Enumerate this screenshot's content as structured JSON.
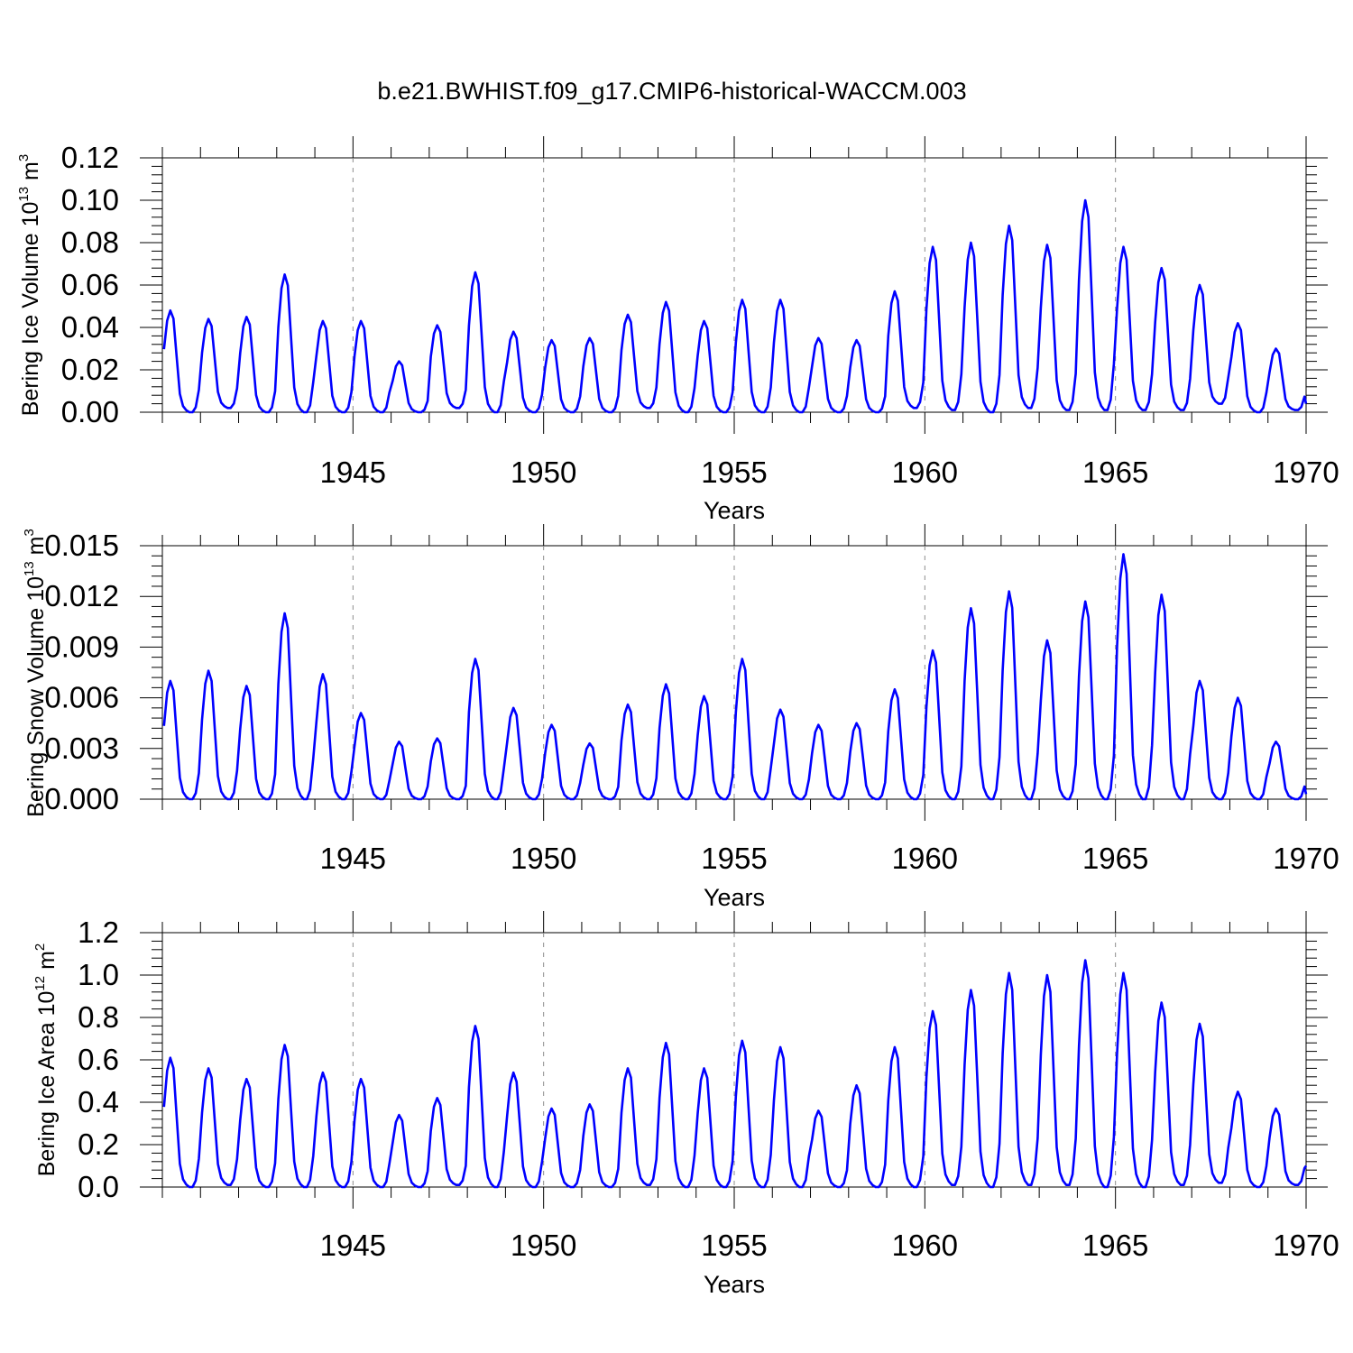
{
  "figure": {
    "title": "b.e21.BWHIST.f09_g17.CMIP6-historical-WACCM.003",
    "line_color": "#0000ff",
    "axis_color": "#000000",
    "grid_color": "#8c8c8c"
  },
  "chart_data": [
    {
      "type": "line",
      "ylabel_text": "Bering Ice Volume 10",
      "ylabel_exp": "13",
      "ylabel_unit": " m",
      "ylabel_unit_exp": "3",
      "xlabel": "Years",
      "xlim": [
        1940.0,
        1970.0
      ],
      "ylim": [
        0.0,
        0.12
      ],
      "y_ticks": [
        "0.00",
        "0.02",
        "0.04",
        "0.06",
        "0.08",
        "0.10",
        "0.12"
      ],
      "y_tick_values": [
        0.0,
        0.02,
        0.04,
        0.06,
        0.08,
        0.1,
        0.12
      ],
      "x_ticks": [
        "1945",
        "1950",
        "1955",
        "1960",
        "1965",
        "1970"
      ],
      "x_tick_values": [
        1945,
        1950,
        1955,
        1960,
        1965,
        1970
      ],
      "grid_x": [
        1945,
        1950,
        1955,
        1960,
        1965
      ],
      "annual_max": [
        0.048,
        0.044,
        0.045,
        0.065,
        0.043,
        0.043,
        0.024,
        0.041,
        0.066,
        0.038,
        0.034,
        0.035,
        0.046,
        0.052,
        0.043,
        0.053,
        0.053,
        0.035,
        0.034,
        0.057,
        0.078,
        0.08,
        0.088,
        0.079,
        0.1,
        0.078,
        0.068,
        0.06,
        0.042,
        0.03
      ],
      "annual_min": [
        0.0,
        0.002,
        0.0,
        0.0,
        0.0,
        0.0,
        0.0,
        0.002,
        0.0,
        0.0,
        0.0,
        0.0,
        0.002,
        0.0,
        0.0,
        0.0,
        0.0,
        0.0,
        0.0,
        0.002,
        0.001,
        0.0,
        0.002,
        0.001,
        0.001,
        0.001,
        0.001,
        0.004,
        0.0,
        0.001
      ],
      "end_value": 0.004
    },
    {
      "type": "line",
      "ylabel_text": "Bering Snow Volume 10",
      "ylabel_exp": "13",
      "ylabel_unit": " m",
      "ylabel_unit_exp": "3",
      "xlabel": "Years",
      "xlim": [
        1940.0,
        1970.0
      ],
      "ylim": [
        0.0,
        0.015
      ],
      "y_ticks": [
        "0.000",
        "0.003",
        "0.006",
        "0.009",
        "0.012",
        "0.015"
      ],
      "y_tick_values": [
        0.0,
        0.003,
        0.006,
        0.009,
        0.012,
        0.015
      ],
      "x_ticks": [
        "1945",
        "1950",
        "1955",
        "1960",
        "1965",
        "1970"
      ],
      "x_tick_values": [
        1945,
        1950,
        1955,
        1960,
        1965,
        1970
      ],
      "grid_x": [
        1945,
        1950,
        1955,
        1960,
        1965
      ],
      "annual_max": [
        0.007,
        0.0076,
        0.0067,
        0.011,
        0.0074,
        0.0051,
        0.0034,
        0.0036,
        0.0083,
        0.0054,
        0.0044,
        0.0033,
        0.0056,
        0.0068,
        0.0061,
        0.0083,
        0.0053,
        0.0044,
        0.0045,
        0.0065,
        0.0088,
        0.0113,
        0.0123,
        0.0094,
        0.0117,
        0.0145,
        0.0121,
        0.007,
        0.006,
        0.0034
      ],
      "annual_min": [
        0.0,
        0.0,
        0.0,
        0.0,
        0.0,
        0.0,
        0.0,
        0.0,
        0.0,
        0.0,
        0.0,
        0.0,
        0.0,
        0.0,
        0.0,
        0.0,
        0.0,
        0.0,
        0.0,
        0.0,
        0.0,
        0.0,
        0.0,
        0.0,
        0.0,
        0.0,
        0.0,
        0.0,
        0.0,
        0.0
      ],
      "end_value": 0.0003
    },
    {
      "type": "line",
      "ylabel_text": "Bering Ice Area 10",
      "ylabel_exp": "12",
      "ylabel_unit": " m",
      "ylabel_unit_exp": "2",
      "xlabel": "Years",
      "xlim": [
        1940.0,
        1970.0
      ],
      "ylim": [
        0.0,
        1.2
      ],
      "y_ticks": [
        "0.0",
        "0.2",
        "0.4",
        "0.6",
        "0.8",
        "1.0",
        "1.2"
      ],
      "y_tick_values": [
        0.0,
        0.2,
        0.4,
        0.6,
        0.8,
        1.0,
        1.2
      ],
      "x_ticks": [
        "1945",
        "1950",
        "1955",
        "1960",
        "1965",
        "1970"
      ],
      "x_tick_values": [
        1945,
        1950,
        1955,
        1960,
        1965,
        1970
      ],
      "grid_x": [
        1945,
        1950,
        1955,
        1960,
        1965
      ],
      "annual_max": [
        0.61,
        0.56,
        0.51,
        0.67,
        0.54,
        0.51,
        0.34,
        0.42,
        0.76,
        0.54,
        0.37,
        0.39,
        0.56,
        0.68,
        0.56,
        0.69,
        0.66,
        0.36,
        0.48,
        0.66,
        0.83,
        0.93,
        1.01,
        1.0,
        1.07,
        1.01,
        0.87,
        0.77,
        0.45,
        0.37
      ],
      "annual_min": [
        0.0,
        0.01,
        0.0,
        0.0,
        0.0,
        0.0,
        0.0,
        0.01,
        0.0,
        0.0,
        0.0,
        0.0,
        0.01,
        0.0,
        0.0,
        0.0,
        0.0,
        0.0,
        0.0,
        0.0,
        0.01,
        0.0,
        0.01,
        0.01,
        0.0,
        0.0,
        0.01,
        0.02,
        0.0,
        0.01
      ],
      "end_value": 0.1
    }
  ]
}
